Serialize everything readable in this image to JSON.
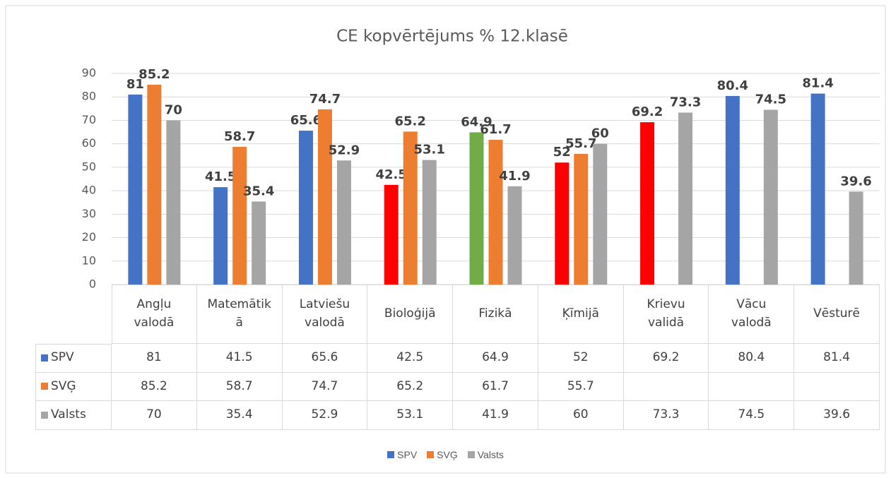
{
  "chart_data": {
    "type": "bar",
    "title": "CE kopvērtējums % 12.klasē",
    "categories": [
      "Angļu valodā",
      "Matemātikā",
      "Latviešu valodā",
      "Bioloģijā",
      "Fizikā",
      "Ķīmijā",
      "Krievu validā",
      "Vācu valodā",
      "Vēsturē"
    ],
    "series": [
      {
        "name": "SPV",
        "color": "#4472c4",
        "colors": [
          "#4472c4",
          "#4472c4",
          "#4472c4",
          "#ff0000",
          "#70ad47",
          "#ff0000",
          "#ff0000",
          "#4472c4",
          "#4472c4"
        ],
        "values": [
          81,
          41.5,
          65.6,
          42.5,
          64.9,
          52,
          69.2,
          80.4,
          81.4
        ]
      },
      {
        "name": "SVĢ",
        "color": "#ed7d31",
        "values": [
          85.2,
          58.7,
          74.7,
          65.2,
          61.7,
          55.7,
          null,
          null,
          null
        ]
      },
      {
        "name": "Valsts",
        "color": "#a5a5a5",
        "values": [
          70,
          35.4,
          52.9,
          53.1,
          41.9,
          60,
          73.3,
          74.5,
          39.6
        ]
      }
    ],
    "ylim": [
      0,
      90
    ],
    "yticks": [
      0,
      10,
      20,
      30,
      40,
      50,
      60,
      70,
      80,
      90
    ],
    "grid": true,
    "legend": "bottom",
    "data_table": true
  }
}
